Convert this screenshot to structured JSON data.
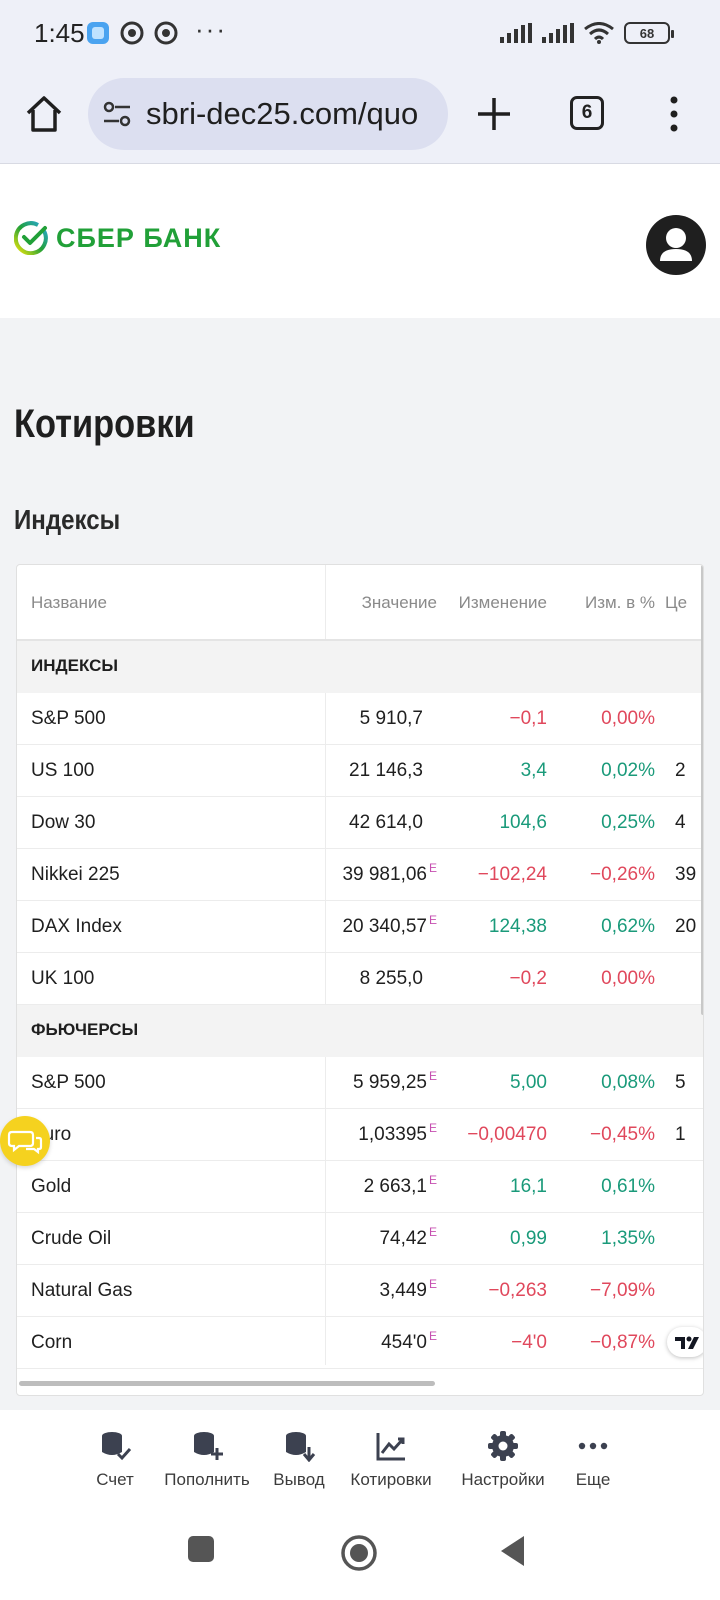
{
  "status_bar": {
    "time": "1:45",
    "battery": "68",
    "icons": [
      "app-notification-icon",
      "g-notification-icon",
      "g-notification-icon",
      "more-dots-icon",
      "signal-icon",
      "signal-icon",
      "wifi-icon",
      "battery-icon"
    ]
  },
  "browser": {
    "url": "sbri-dec25.com/quo",
    "tab_count": "6"
  },
  "site": {
    "logo_text": "СБЕР БАНК",
    "brand_color": "#21a038"
  },
  "page": {
    "title": "Котировки",
    "section_title": "Индексы"
  },
  "table": {
    "headers": {
      "name": "Название",
      "value": "Значение",
      "change": "Изменение",
      "pct": "Изм. в %",
      "extra": "Це"
    },
    "groups": [
      {
        "label": "ИНДЕКСЫ",
        "rows": [
          {
            "name": "S&P 500",
            "value": "5 910,7",
            "e": "",
            "change": "−0,1",
            "pct": "0,00%",
            "dir": "neg",
            "extra": ""
          },
          {
            "name": "US 100",
            "value": "21 146,3",
            "e": "",
            "change": "3,4",
            "pct": "0,02%",
            "dir": "pos",
            "extra": "2"
          },
          {
            "name": "Dow 30",
            "value": "42 614,0",
            "e": "",
            "change": "104,6",
            "pct": "0,25%",
            "dir": "pos",
            "extra": "4"
          },
          {
            "name": "Nikkei 225",
            "value": "39 981,06",
            "e": "E",
            "change": "−102,24",
            "pct": "−0,26%",
            "dir": "neg",
            "extra": "39"
          },
          {
            "name": "DAX Index",
            "value": "20 340,57",
            "e": "E",
            "change": "124,38",
            "pct": "0,62%",
            "dir": "pos",
            "extra": "20"
          },
          {
            "name": "UK 100",
            "value": "8 255,0",
            "e": "",
            "change": "−0,2",
            "pct": "0,00%",
            "dir": "neg",
            "extra": ""
          }
        ]
      },
      {
        "label": "ФЬЮЧЕРСЫ",
        "rows": [
          {
            "name": "S&P 500",
            "value": "5 959,25",
            "e": "E",
            "change": "5,00",
            "pct": "0,08%",
            "dir": "pos",
            "extra": "5"
          },
          {
            "name": "Euro",
            "value": "1,03395",
            "e": "E",
            "change": "−0,00470",
            "pct": "−0,45%",
            "dir": "neg",
            "extra": "1"
          },
          {
            "name": "Gold",
            "value": "2 663,1",
            "e": "E",
            "change": "16,1",
            "pct": "0,61%",
            "dir": "pos",
            "extra": ""
          },
          {
            "name": "Crude Oil",
            "value": "74,42",
            "e": "E",
            "change": "0,99",
            "pct": "1,35%",
            "dir": "pos",
            "extra": ""
          },
          {
            "name": "Natural Gas",
            "value": "3,449",
            "e": "E",
            "change": "−0,263",
            "pct": "−7,09%",
            "dir": "neg",
            "extra": ""
          },
          {
            "name": "Corn",
            "value": "454'0",
            "e": "E",
            "change": "−4'0",
            "pct": "−0,87%",
            "dir": "neg",
            "extra": ""
          }
        ]
      }
    ]
  },
  "bottom_nav": [
    {
      "label": "Счет",
      "icon": "account-coins-icon"
    },
    {
      "label": "Пополнить",
      "icon": "deposit-coins-icon"
    },
    {
      "label": "Вывод",
      "icon": "withdraw-coins-icon"
    },
    {
      "label": "Котировки",
      "icon": "quotes-chart-icon"
    },
    {
      "label": "Настройки",
      "icon": "gear-icon"
    },
    {
      "label": "Еще",
      "icon": "more-dots-icon"
    }
  ],
  "colors": {
    "positive": "#1a9a7a",
    "negative": "#e0485c",
    "estimate_mark": "#c64fb0"
  }
}
